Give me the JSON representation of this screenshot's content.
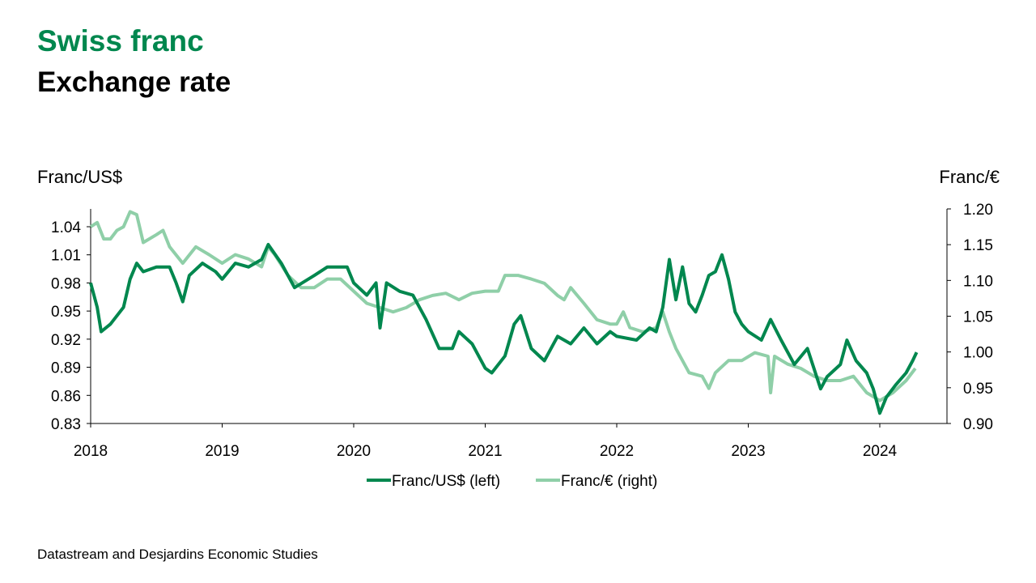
{
  "header": {
    "title": "Swiss franc",
    "subtitle": "Exchange rate"
  },
  "source": "Datastream and Desjardins Economic Studies",
  "colors": {
    "usd": "#00874e",
    "eur": "#8fcfa8",
    "title": "#00874e"
  },
  "chart_data": {
    "type": "line",
    "title": "Swiss franc – Exchange rate",
    "ylabel_left": "Franc/US$",
    "ylabel_right": "Franc/€",
    "xlim": [
      2018,
      2024.5
    ],
    "ylim_left": [
      0.83,
      1.059
    ],
    "ylim_right": [
      0.9,
      1.2
    ],
    "x_ticks": [
      "2018",
      "2019",
      "2020",
      "2021",
      "2022",
      "2023",
      "2024"
    ],
    "y_ticks_left": [
      "1.04",
      "1.01",
      "0.98",
      "0.95",
      "0.92",
      "0.89",
      "0.86",
      "0.83"
    ],
    "y_ticks_right": [
      "1.20",
      "1.15",
      "1.10",
      "1.05",
      "1.00",
      "0.95",
      "0.90"
    ],
    "legend_position": "bottom",
    "series": [
      {
        "name": "Franc/US$ (left)",
        "axis": "left",
        "x": [
          2018.0,
          2018.05,
          2018.08,
          2018.15,
          2018.25,
          2018.3,
          2018.35,
          2018.4,
          2018.5,
          2018.6,
          2018.65,
          2018.7,
          2018.75,
          2018.85,
          2018.95,
          2019.0,
          2019.1,
          2019.2,
          2019.3,
          2019.35,
          2019.45,
          2019.55,
          2019.7,
          2019.8,
          2019.95,
          2020.0,
          2020.1,
          2020.17,
          2020.2,
          2020.25,
          2020.35,
          2020.45,
          2020.55,
          2020.65,
          2020.75,
          2020.8,
          2020.9,
          2021.0,
          2021.05,
          2021.15,
          2021.22,
          2021.27,
          2021.35,
          2021.45,
          2021.55,
          2021.65,
          2021.75,
          2021.85,
          2021.95,
          2022.0,
          2022.15,
          2022.25,
          2022.3,
          2022.35,
          2022.4,
          2022.45,
          2022.5,
          2022.55,
          2022.6,
          2022.65,
          2022.7,
          2022.75,
          2022.8,
          2022.85,
          2022.9,
          2022.95,
          2023.0,
          2023.1,
          2023.17,
          2023.25,
          2023.35,
          2023.45,
          2023.55,
          2023.6,
          2023.7,
          2023.75,
          2023.82,
          2023.9,
          2023.95,
          2024.0,
          2024.05,
          2024.12,
          2024.2,
          2024.25,
          2024.28
        ],
        "values": [
          0.98,
          0.954,
          0.928,
          0.936,
          0.954,
          0.984,
          1.001,
          0.992,
          0.997,
          0.997,
          0.98,
          0.96,
          0.988,
          1.001,
          0.992,
          0.984,
          1.001,
          0.997,
          1.005,
          1.021,
          1.001,
          0.975,
          0.988,
          0.997,
          0.997,
          0.98,
          0.967,
          0.98,
          0.932,
          0.98,
          0.971,
          0.967,
          0.941,
          0.91,
          0.91,
          0.928,
          0.915,
          0.889,
          0.884,
          0.902,
          0.936,
          0.945,
          0.91,
          0.897,
          0.923,
          0.915,
          0.932,
          0.915,
          0.928,
          0.923,
          0.919,
          0.932,
          0.928,
          0.954,
          1.005,
          0.962,
          0.997,
          0.958,
          0.949,
          0.967,
          0.988,
          0.992,
          1.01,
          0.984,
          0.949,
          0.936,
          0.928,
          0.919,
          0.941,
          0.919,
          0.893,
          0.91,
          0.867,
          0.88,
          0.893,
          0.919,
          0.897,
          0.884,
          0.867,
          0.841,
          0.858,
          0.871,
          0.884,
          0.897,
          0.906
        ]
      },
      {
        "name": "Franc/€ (right)",
        "axis": "right",
        "x": [
          2018.0,
          2018.05,
          2018.1,
          2018.15,
          2018.2,
          2018.25,
          2018.3,
          2018.35,
          2018.4,
          2018.5,
          2018.55,
          2018.6,
          2018.7,
          2018.8,
          2018.9,
          2019.0,
          2019.1,
          2019.2,
          2019.3,
          2019.35,
          2019.4,
          2019.5,
          2019.6,
          2019.7,
          2019.8,
          2019.9,
          2020.0,
          2020.1,
          2020.2,
          2020.3,
          2020.4,
          2020.5,
          2020.6,
          2020.7,
          2020.8,
          2020.9,
          2021.0,
          2021.1,
          2021.15,
          2021.25,
          2021.35,
          2021.45,
          2021.55,
          2021.6,
          2021.65,
          2021.75,
          2021.85,
          2021.95,
          2022.0,
          2022.05,
          2022.1,
          2022.2,
          2022.3,
          2022.35,
          2022.4,
          2022.45,
          2022.55,
          2022.65,
          2022.7,
          2022.75,
          2022.85,
          2022.95,
          2023.05,
          2023.15,
          2023.17,
          2023.2,
          2023.3,
          2023.4,
          2023.5,
          2023.6,
          2023.7,
          2023.8,
          2023.9,
          2024.0,
          2024.1,
          2024.2,
          2024.27
        ],
        "values": [
          1.175,
          1.181,
          1.158,
          1.158,
          1.17,
          1.175,
          1.196,
          1.192,
          1.153,
          1.164,
          1.17,
          1.147,
          1.124,
          1.147,
          1.136,
          1.124,
          1.136,
          1.13,
          1.119,
          1.147,
          1.136,
          1.107,
          1.09,
          1.09,
          1.102,
          1.102,
          1.085,
          1.068,
          1.062,
          1.056,
          1.062,
          1.073,
          1.079,
          1.082,
          1.073,
          1.082,
          1.085,
          1.085,
          1.107,
          1.107,
          1.102,
          1.096,
          1.079,
          1.073,
          1.09,
          1.068,
          1.045,
          1.039,
          1.039,
          1.056,
          1.034,
          1.028,
          1.034,
          1.056,
          1.028,
          1.005,
          0.971,
          0.966,
          0.949,
          0.971,
          0.988,
          0.988,
          0.999,
          0.994,
          0.943,
          0.994,
          0.983,
          0.977,
          0.966,
          0.96,
          0.96,
          0.966,
          0.943,
          0.932,
          0.943,
          0.96,
          0.977
        ]
      }
    ]
  }
}
